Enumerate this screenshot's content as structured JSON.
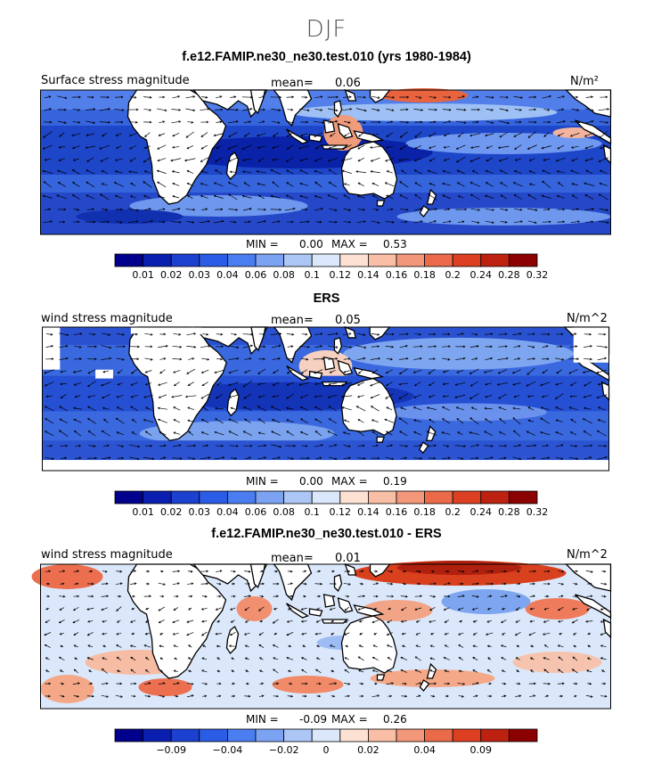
{
  "figure": {
    "season": "DJF"
  },
  "chart_data": [
    {
      "type": "heatmap",
      "title": "f.e12.FAMIP.ne30_ne30.test.010 (yrs 1980-1984)",
      "field_label": "Surface stress magnitude",
      "mean_label": "mean=",
      "mean_value": "0.06",
      "units": "N/m²",
      "min_label": "MIN =",
      "min_value": "0.00",
      "max_label": "MAX =",
      "max_value": "0.53",
      "colorbar_ticks": [
        "0.01",
        "0.02",
        "0.03",
        "0.04",
        "0.06",
        "0.08",
        "0.1",
        "0.12",
        "0.14",
        "0.16",
        "0.18",
        "0.2",
        "0.24",
        "0.28",
        "0.32"
      ],
      "colorbar_colors": [
        "#00008c",
        "#0a1fb0",
        "#1c40cf",
        "#2b5ce6",
        "#4a7df0",
        "#7ba3f2",
        "#acc6f6",
        "#dbe8fb",
        "#fde2d4",
        "#f8bea6",
        "#f29779",
        "#ea6a4a",
        "#dd3f22",
        "#bd2110",
        "#8b0000"
      ],
      "has_wind_vectors": true
    },
    {
      "type": "heatmap",
      "title": "ERS",
      "field_label": "wind stress magnitude",
      "mean_label": "mean=",
      "mean_value": "0.05",
      "units": "N/m^2",
      "min_label": "MIN =",
      "min_value": "0.00",
      "max_label": "MAX =",
      "max_value": "0.19",
      "colorbar_ticks": [
        "0.01",
        "0.02",
        "0.03",
        "0.04",
        "0.06",
        "0.08",
        "0.1",
        "0.12",
        "0.14",
        "0.16",
        "0.18",
        "0.2",
        "0.24",
        "0.28",
        "0.32"
      ],
      "colorbar_colors": [
        "#00008c",
        "#0a1fb0",
        "#1c40cf",
        "#2b5ce6",
        "#4a7df0",
        "#7ba3f2",
        "#acc6f6",
        "#dbe8fb",
        "#fde2d4",
        "#f8bea6",
        "#f29779",
        "#ea6a4a",
        "#dd3f22",
        "#bd2110",
        "#8b0000"
      ],
      "has_wind_vectors": true
    },
    {
      "type": "heatmap",
      "title": "f.e12.FAMIP.ne30_ne30.test.010 - ERS",
      "field_label": "wind stress magnitude",
      "mean_label": "mean=",
      "mean_value": "0.01",
      "units": "N/m^2",
      "min_label": "MIN =",
      "min_value": "-0.09",
      "max_label": "MAX =",
      "max_value": "0.26",
      "colorbar_ticks": [
        "−0.09",
        "−0.04",
        "−0.02",
        "0",
        "0.02",
        "0.04",
        "0.09"
      ],
      "colorbar_colors": [
        "#00008c",
        "#0a1fb0",
        "#1c40cf",
        "#2b5ce6",
        "#4a7df0",
        "#7ba3f2",
        "#acc6f6",
        "#dbe8fb",
        "#fde2d4",
        "#f8bea6",
        "#f29779",
        "#ea6a4a",
        "#dd3f22",
        "#bd2110",
        "#8b0000"
      ],
      "has_wind_vectors": true
    }
  ]
}
